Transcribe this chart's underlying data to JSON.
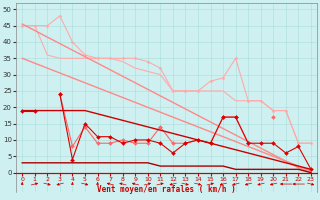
{
  "x": [
    0,
    1,
    2,
    3,
    4,
    5,
    6,
    7,
    8,
    9,
    10,
    11,
    12,
    13,
    14,
    15,
    16,
    17,
    18,
    19,
    20,
    21,
    22,
    23
  ],
  "background_color": "#cff0f0",
  "grid_color": "#aadddd",
  "xlabel": "Vent moyen/en rafales ( km/h )",
  "ylabel_ticks": [
    0,
    5,
    10,
    15,
    20,
    25,
    30,
    35,
    40,
    45,
    50
  ],
  "ylim": [
    -6,
    52
  ],
  "xlim": [
    -0.5,
    23.5
  ],
  "line_max_rafales": {
    "y": [
      45,
      45,
      45,
      48,
      40,
      36,
      35,
      35,
      35,
      35,
      34,
      32,
      25,
      25,
      25,
      28,
      29,
      35,
      22,
      22,
      19,
      19,
      9,
      9
    ],
    "color": "#ffaaaa",
    "linewidth": 0.8,
    "marker": "D",
    "markersize": 1.5
  },
  "line_avg_rafales_top": {
    "y": [
      45,
      45,
      36,
      35,
      35,
      35,
      35,
      35,
      34,
      32,
      31,
      30,
      25,
      25,
      25,
      25,
      25,
      22,
      22,
      22,
      19,
      19,
      9,
      9
    ],
    "color": "#ffaaaa",
    "linewidth": 0.8,
    "marker": null
  },
  "line_trend_high": {
    "y": [
      45.5,
      43.5,
      41.5,
      39.5,
      37.5,
      35.5,
      33.5,
      31.5,
      29.5,
      27.5,
      25.5,
      23.5,
      21.5,
      19.5,
      17.5,
      15.5,
      13.5,
      11.5,
      9.5,
      7.5,
      5.5,
      3.5,
      1.5,
      0
    ],
    "color": "#ff8888",
    "linewidth": 1.0,
    "marker": null
  },
  "line_trend_mid": {
    "y": [
      35,
      33.5,
      32,
      30.5,
      29,
      27.5,
      26,
      24.5,
      23,
      21.5,
      20,
      18.5,
      17,
      15.5,
      14,
      12.5,
      11,
      9.5,
      8,
      6.5,
      5,
      3.5,
      2,
      0.5
    ],
    "color": "#ff8888",
    "linewidth": 1.0,
    "marker": null
  },
  "line_scattered_pink": {
    "y": [
      null,
      null,
      null,
      24,
      8,
      14,
      9,
      9,
      10,
      9,
      9,
      14,
      9,
      9,
      10,
      9,
      17,
      17,
      9,
      null,
      17,
      null,
      null,
      null
    ],
    "color": "#ff6666",
    "linewidth": 0.8,
    "marker": "D",
    "markersize": 2.0
  },
  "line_main_avg": {
    "y": [
      19,
      19,
      null,
      24,
      4,
      15,
      11,
      11,
      9,
      10,
      10,
      9,
      6,
      9,
      10,
      9,
      17,
      17,
      9,
      9,
      9,
      6,
      8,
      1
    ],
    "color": "#dd0000",
    "linewidth": 0.8,
    "marker": "D",
    "markersize": 2.0
  },
  "line_base_high": {
    "y": [
      19,
      19,
      19,
      19,
      19,
      19,
      18,
      17,
      16,
      15,
      14,
      13,
      12,
      11,
      10,
      9,
      8,
      7,
      6,
      5,
      4,
      3,
      2,
      1
    ],
    "color": "#cc0000",
    "linewidth": 1.0,
    "marker": null
  },
  "line_base_low": {
    "y": [
      3,
      3,
      3,
      3,
      3,
      3,
      3,
      3,
      3,
      3,
      3,
      2,
      2,
      2,
      2,
      2,
      2,
      1,
      1,
      1,
      1,
      1,
      1,
      0
    ],
    "color": "#aa0000",
    "linewidth": 1.0,
    "marker": null
  },
  "arrow_angles": [
    0,
    45,
    135,
    225,
    0,
    135,
    0,
    315,
    315,
    315,
    45,
    45,
    225,
    135,
    135,
    45,
    225,
    225,
    225,
    225,
    225,
    270,
    270,
    135
  ]
}
